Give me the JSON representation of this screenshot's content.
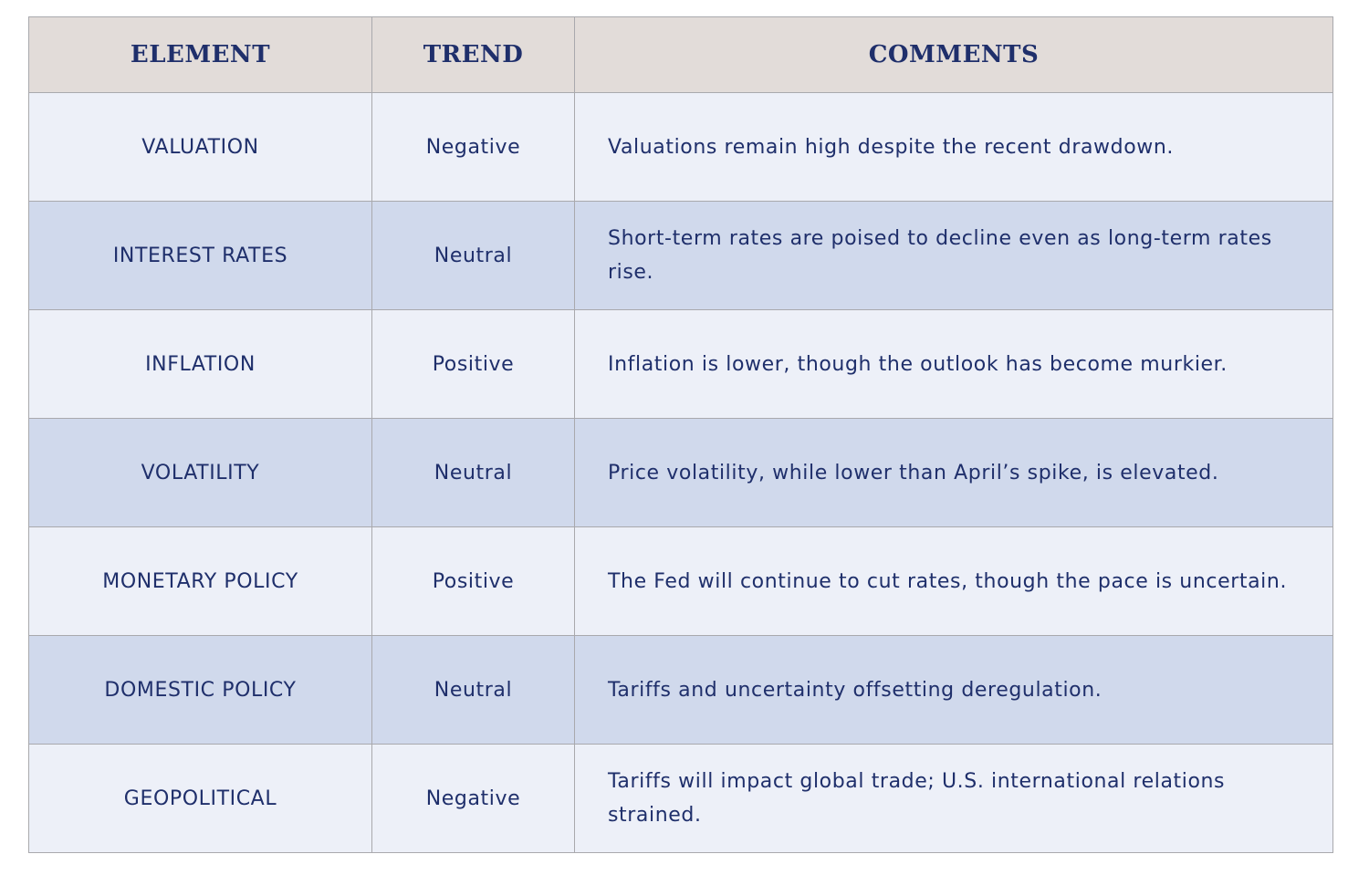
{
  "table": {
    "headers": [
      "ELEMENT",
      "TREND",
      "COMMENTS"
    ],
    "rows": [
      {
        "element": "VALUATION",
        "trend": "Negative",
        "comment": "Valuations remain high despite the recent drawdown."
      },
      {
        "element": "INTEREST RATES",
        "trend": "Neutral",
        "comment": "Short-term rates are poised to decline even as long-term rates rise."
      },
      {
        "element": "INFLATION",
        "trend": "Positive",
        "comment": "Inflation is lower, though the outlook has become murkier."
      },
      {
        "element": "VOLATILITY",
        "trend": "Neutral",
        "comment": "Price volatility, while lower than April’s spike, is elevated."
      },
      {
        "element": "MONETARY POLICY",
        "trend": "Positive",
        "comment": "The Fed will continue to cut rates, though the pace is uncertain."
      },
      {
        "element": "DOMESTIC POLICY",
        "trend": "Neutral",
        "comment": "Tariffs and uncertainty offsetting deregulation."
      },
      {
        "element": "GEOPOLITICAL",
        "trend": "Negative",
        "comment": "Tariffs will impact global trade; U.S. international relations strained."
      }
    ]
  },
  "colors": {
    "header_bg": "#e2dcd9",
    "row_light": "#edf0f8",
    "row_dark": "#d0d9ec",
    "text": "#1f2f6b",
    "border": "#a9a9ad"
  }
}
